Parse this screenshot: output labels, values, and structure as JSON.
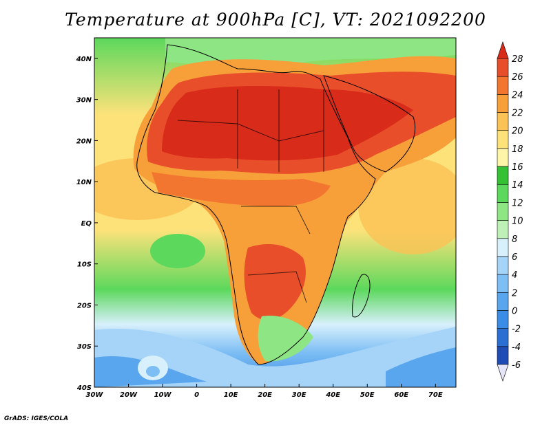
{
  "title": "Temperature at 900hPa [C], VT: 2021092200",
  "credit": "GrADS: IGES/COLA",
  "map": {
    "lon_range": [
      -30,
      76
    ],
    "lat_range": [
      -40,
      45
    ],
    "lon_ticks": [
      {
        "value": -30,
        "label": "30W"
      },
      {
        "value": -20,
        "label": "20W"
      },
      {
        "value": -10,
        "label": "10W"
      },
      {
        "value": 0,
        "label": "0"
      },
      {
        "value": 10,
        "label": "10E"
      },
      {
        "value": 20,
        "label": "20E"
      },
      {
        "value": 30,
        "label": "30E"
      },
      {
        "value": 40,
        "label": "40E"
      },
      {
        "value": 50,
        "label": "50E"
      },
      {
        "value": 60,
        "label": "60E"
      },
      {
        "value": 70,
        "label": "70E"
      }
    ],
    "lat_ticks": [
      {
        "value": 40,
        "label": "40N"
      },
      {
        "value": 30,
        "label": "30N"
      },
      {
        "value": 20,
        "label": "20N"
      },
      {
        "value": 10,
        "label": "10N"
      },
      {
        "value": 0,
        "label": "EQ"
      },
      {
        "value": -10,
        "label": "10S"
      },
      {
        "value": -20,
        "label": "20S"
      },
      {
        "value": -30,
        "label": "30S"
      },
      {
        "value": -40,
        "label": "40S"
      }
    ]
  },
  "colorbar": {
    "levels": [
      -6,
      -4,
      -2,
      0,
      2,
      4,
      6,
      8,
      10,
      12,
      14,
      16,
      18,
      20,
      22,
      24,
      26,
      28
    ],
    "labels": [
      "-6",
      "-4",
      "-2",
      "0",
      "2",
      "4",
      "6",
      "8",
      "10",
      "12",
      "14",
      "16",
      "18",
      "20",
      "22",
      "24",
      "26",
      "28"
    ],
    "colors": [
      "#1e1e8c",
      "#1e4bb4",
      "#2b6fd2",
      "#3a8ce6",
      "#5aa6ee",
      "#7dbef4",
      "#a6d4f8",
      "#d8f0fc",
      "#bff0b8",
      "#8ee584",
      "#5cd85c",
      "#34c234",
      "#fff5a8",
      "#fde27a",
      "#fbc255",
      "#f7a03a",
      "#f27530",
      "#e94e2a",
      "#d92b1a"
    ]
  }
}
